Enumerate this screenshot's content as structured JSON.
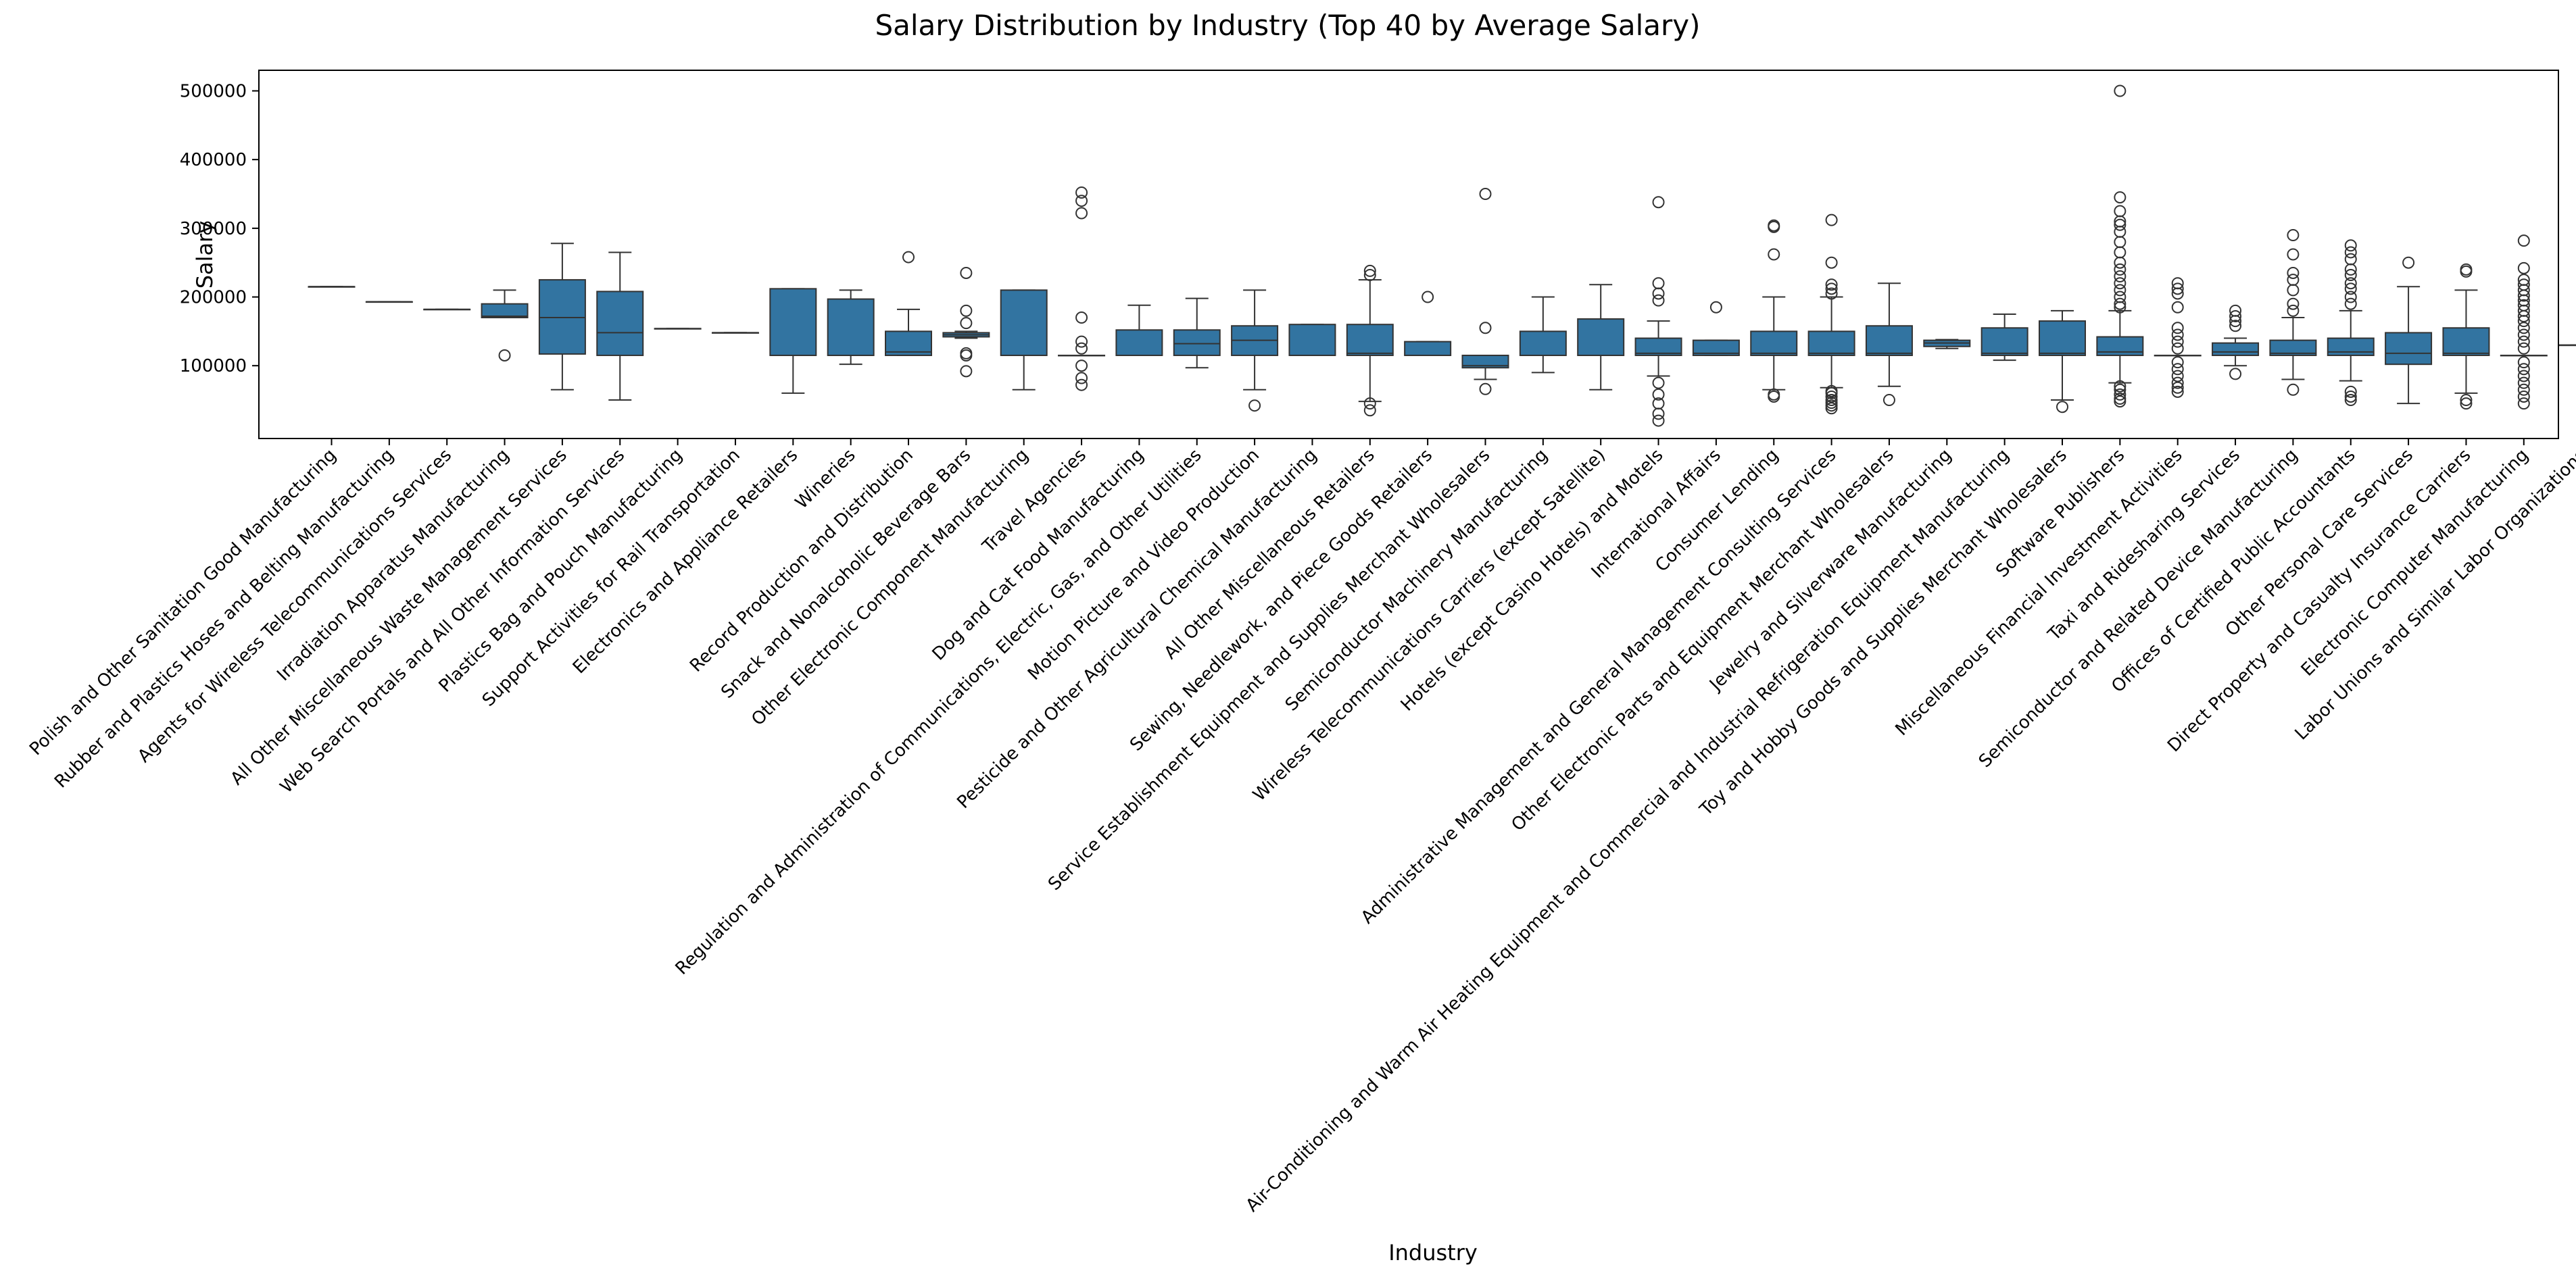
{
  "chart_data": {
    "type": "boxplot",
    "title": "Salary Distribution by Industry (Top 40 by Average Salary)",
    "xlabel": "Industry",
    "ylabel": "Salary",
    "ylim": [
      -6000,
      530000
    ],
    "yticks": [
      "100000",
      "200000",
      "300000",
      "400000",
      "500000"
    ],
    "grid": false,
    "box_color": "#3274a1",
    "line_color": "#333333",
    "categories": [
      "Polish and Other Sanitation Good Manufacturing",
      "Rubber and Plastics Hoses and Belting Manufacturing",
      "Agents for Wireless Telecommunications Services",
      "Irradiation Apparatus Manufacturing",
      "All Other Miscellaneous Waste Management Services",
      "Web Search Portals and All Other Information Services",
      "Plastics Bag and Pouch Manufacturing",
      "Support Activities for Rail Transportation",
      "Electronics and Appliance Retailers",
      "Wineries",
      "Record Production and Distribution",
      "Snack and Nonalcoholic Beverage Bars",
      "Other Electronic Component Manufacturing",
      "Travel Agencies",
      "Dog and Cat Food Manufacturing",
      "Regulation and Administration of Communications, Electric, Gas, and Other Utilities",
      "Motion Picture and Video Production",
      "Pesticide and Other Agricultural Chemical Manufacturing",
      "All Other Miscellaneous Retailers",
      "Sewing, Needlework, and Piece Goods Retailers",
      "Service Establishment Equipment and Supplies Merchant Wholesalers",
      "Semiconductor Machinery Manufacturing",
      "Wireless Telecommunications Carriers (except Satellite)",
      "Hotels (except Casino Hotels) and Motels",
      "International Affairs",
      "Consumer Lending",
      "Administrative Management and General Management Consulting Services",
      "Other Electronic Parts and Equipment Merchant Wholesalers",
      "Jewelry and Silverware Manufacturing",
      "Air-Conditioning and Warm Air Heating Equipment and Commercial and Industrial Refrigeration Equipment Manufacturing",
      "Toy and Hobby Goods and Supplies Merchant Wholesalers",
      "Software Publishers",
      "Miscellaneous Financial Investment Activities",
      "Taxi and Ridesharing Services",
      "Semiconductor and Related Device Manufacturing",
      "Offices of Certified Public Accountants",
      "Other Personal Care Services",
      "Direct Property and Casualty Insurance Carriers",
      "Electronic Computer Manufacturing",
      "Labor Unions and Similar Labor Organizations"
    ],
    "boxes": [
      {
        "whislo": 215000,
        "q1": 215000,
        "med": 215000,
        "q3": 215000,
        "whishi": 215000,
        "fliers": []
      },
      {
        "whislo": 193000,
        "q1": 193000,
        "med": 193000,
        "q3": 193000,
        "whishi": 193000,
        "fliers": []
      },
      {
        "whislo": 182000,
        "q1": 182000,
        "med": 182000,
        "q3": 182000,
        "whishi": 182000,
        "fliers": []
      },
      {
        "whislo": 170000,
        "q1": 170000,
        "med": 172000,
        "q3": 190000,
        "whishi": 210000,
        "fliers": [
          115000
        ]
      },
      {
        "whislo": 65000,
        "q1": 117000,
        "med": 170000,
        "q3": 225000,
        "whishi": 278000,
        "fliers": []
      },
      {
        "whislo": 50000,
        "q1": 115000,
        "med": 148000,
        "q3": 208000,
        "whishi": 265000,
        "fliers": []
      },
      {
        "whislo": 154000,
        "q1": 154000,
        "med": 154000,
        "q3": 154000,
        "whishi": 154000,
        "fliers": []
      },
      {
        "whislo": 148000,
        "q1": 148000,
        "med": 148000,
        "q3": 148000,
        "whishi": 148000,
        "fliers": []
      },
      {
        "whislo": 60000,
        "q1": 115000,
        "med": 115000,
        "q3": 212000,
        "whishi": 212000,
        "fliers": []
      },
      {
        "whislo": 102000,
        "q1": 115000,
        "med": 115000,
        "q3": 197000,
        "whishi": 210000,
        "fliers": []
      },
      {
        "whislo": 115000,
        "q1": 115000,
        "med": 120000,
        "q3": 150000,
        "whishi": 182000,
        "fliers": [
          258000
        ]
      },
      {
        "whislo": 140000,
        "q1": 142000,
        "med": 145000,
        "q3": 148000,
        "whishi": 150000,
        "fliers": [
          92000,
          115000,
          118000,
          162000,
          180000,
          235000
        ]
      },
      {
        "whislo": 65000,
        "q1": 115000,
        "med": 115000,
        "q3": 210000,
        "whishi": 210000,
        "fliers": []
      },
      {
        "whislo": 115000,
        "q1": 115000,
        "med": 115000,
        "q3": 115000,
        "whishi": 115000,
        "fliers": [
          72000,
          82000,
          100000,
          125000,
          135000,
          170000,
          322000,
          340000,
          352000
        ]
      },
      {
        "whislo": 115000,
        "q1": 115000,
        "med": 115000,
        "q3": 152000,
        "whishi": 188000,
        "fliers": []
      },
      {
        "whislo": 97000,
        "q1": 115000,
        "med": 132000,
        "q3": 152000,
        "whishi": 198000,
        "fliers": []
      },
      {
        "whislo": 65000,
        "q1": 115000,
        "med": 137000,
        "q3": 158000,
        "whishi": 210000,
        "fliers": [
          42000
        ]
      },
      {
        "whislo": 115000,
        "q1": 115000,
        "med": 115000,
        "q3": 160000,
        "whishi": 160000,
        "fliers": []
      },
      {
        "whislo": 48000,
        "q1": 115000,
        "med": 118000,
        "q3": 160000,
        "whishi": 225000,
        "fliers": [
          35000,
          45000,
          232000,
          238000
        ]
      },
      {
        "whislo": 115000,
        "q1": 115000,
        "med": 115000,
        "q3": 135000,
        "whishi": 135000,
        "fliers": [
          200000
        ]
      },
      {
        "whislo": 80000,
        "q1": 97000,
        "med": 100000,
        "q3": 115000,
        "whishi": 115000,
        "fliers": [
          66000,
          155000,
          350000
        ]
      },
      {
        "whislo": 90000,
        "q1": 115000,
        "med": 115000,
        "q3": 150000,
        "whishi": 200000,
        "fliers": []
      },
      {
        "whislo": 65000,
        "q1": 115000,
        "med": 115000,
        "q3": 168000,
        "whishi": 218000,
        "fliers": []
      },
      {
        "whislo": 85000,
        "q1": 115000,
        "med": 118000,
        "q3": 140000,
        "whishi": 165000,
        "fliers": [
          20000,
          30000,
          45000,
          58000,
          75000,
          195000,
          205000,
          220000,
          338000
        ]
      },
      {
        "whislo": 115000,
        "q1": 115000,
        "med": 118000,
        "q3": 137000,
        "whishi": 137000,
        "fliers": [
          185000
        ]
      },
      {
        "whislo": 65000,
        "q1": 115000,
        "med": 118000,
        "q3": 150000,
        "whishi": 200000,
        "fliers": [
          55000,
          58000,
          262000,
          302000,
          304000
        ]
      },
      {
        "whislo": 68000,
        "q1": 115000,
        "med": 118000,
        "q3": 150000,
        "whishi": 200000,
        "fliers": [
          38000,
          42000,
          46000,
          50000,
          55000,
          60000,
          63000,
          205000,
          212000,
          218000,
          250000,
          312000
        ]
      },
      {
        "whislo": 70000,
        "q1": 115000,
        "med": 118000,
        "q3": 158000,
        "whishi": 220000,
        "fliers": [
          50000
        ]
      },
      {
        "whislo": 125000,
        "q1": 128000,
        "med": 133000,
        "q3": 137000,
        "whishi": 138000,
        "fliers": []
      },
      {
        "whislo": 108000,
        "q1": 115000,
        "med": 118000,
        "q3": 155000,
        "whishi": 175000,
        "fliers": []
      },
      {
        "whislo": 50000,
        "q1": 115000,
        "med": 118000,
        "q3": 165000,
        "whishi": 180000,
        "fliers": [
          40000
        ]
      },
      {
        "whislo": 75000,
        "q1": 115000,
        "med": 120000,
        "q3": 142000,
        "whishi": 180000,
        "fliers": [
          48000,
          52000,
          58000,
          65000,
          70000,
          185000,
          190000,
          200000,
          210000,
          220000,
          230000,
          240000,
          250000,
          265000,
          280000,
          295000,
          305000,
          310000,
          325000,
          345000,
          500000
        ]
      },
      {
        "whislo": 115000,
        "q1": 115000,
        "med": 115000,
        "q3": 115000,
        "whishi": 115000,
        "fliers": [
          62000,
          68000,
          75000,
          85000,
          95000,
          105000,
          125000,
          135000,
          145000,
          155000,
          185000,
          205000,
          212000,
          220000
        ]
      },
      {
        "whislo": 100000,
        "q1": 115000,
        "med": 120000,
        "q3": 133000,
        "whishi": 140000,
        "fliers": [
          88000,
          158000,
          165000,
          172000,
          180000
        ]
      },
      {
        "whislo": 80000,
        "q1": 115000,
        "med": 118000,
        "q3": 137000,
        "whishi": 170000,
        "fliers": [
          65000,
          180000,
          190000,
          210000,
          225000,
          235000,
          262000,
          290000
        ]
      },
      {
        "whislo": 78000,
        "q1": 115000,
        "med": 120000,
        "q3": 140000,
        "whishi": 180000,
        "fliers": [
          50000,
          55000,
          62000,
          190000,
          200000,
          212000,
          220000,
          232000,
          240000,
          255000,
          265000,
          275000
        ]
      },
      {
        "whislo": 45000,
        "q1": 102000,
        "med": 118000,
        "q3": 148000,
        "whishi": 215000,
        "fliers": [
          250000
        ]
      },
      {
        "whislo": 60000,
        "q1": 115000,
        "med": 118000,
        "q3": 155000,
        "whishi": 210000,
        "fliers": [
          45000,
          50000,
          237000,
          240000
        ]
      },
      {
        "whislo": 115000,
        "q1": 115000,
        "med": 115000,
        "q3": 115000,
        "whishi": 115000,
        "fliers": [
          45000,
          55000,
          65000,
          75000,
          85000,
          95000,
          105000,
          125000,
          135000,
          145000,
          155000,
          165000,
          172000,
          180000,
          188000,
          195000,
          202000,
          210000,
          218000,
          225000,
          242000,
          282000
        ]
      },
      {
        "whislo": 130000,
        "q1": 130000,
        "med": 130000,
        "q3": 130000,
        "whishi": 130000,
        "fliers": []
      }
    ]
  }
}
